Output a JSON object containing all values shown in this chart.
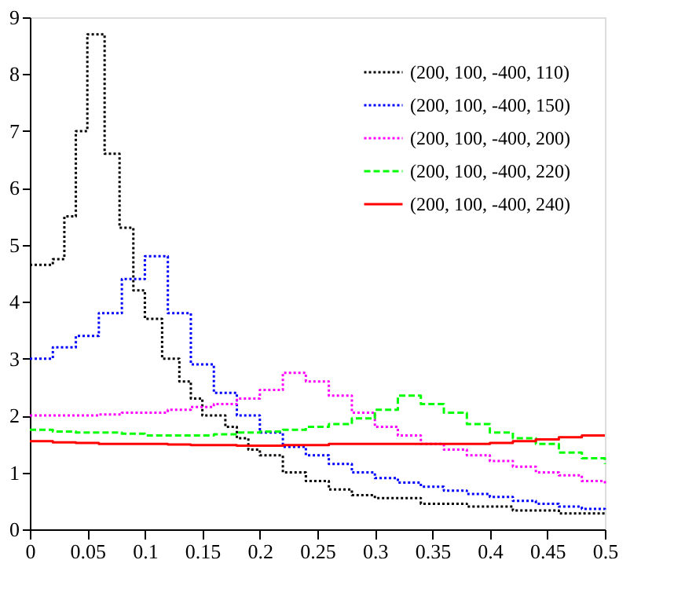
{
  "chart_data": {
    "type": "step",
    "xlim": [
      0,
      0.5
    ],
    "xticks": [
      0,
      0.05,
      0.1,
      0.15,
      0.2,
      0.25,
      0.3,
      0.35,
      0.4,
      0.45,
      0.5
    ],
    "ylim": [
      0,
      9
    ],
    "yticks": [
      0,
      1,
      2,
      3,
      4,
      5,
      6,
      7,
      8,
      9
    ],
    "grid": false,
    "legend": "top right",
    "series": [
      {
        "name": "(200, 100, -400, 110)",
        "color": "#000000",
        "line_style": "dotted",
        "x": [
          0,
          0.02,
          0.03,
          0.04,
          0.05,
          0.065,
          0.078,
          0.09,
          0.1,
          0.115,
          0.13,
          0.14,
          0.15,
          0.17,
          0.18,
          0.19,
          0.2,
          0.22,
          0.24,
          0.26,
          0.28,
          0.3,
          0.34,
          0.38,
          0.42,
          0.46,
          0.5
        ],
        "values": [
          4.65,
          4.75,
          5.5,
          7.0,
          8.7,
          6.6,
          5.3,
          4.2,
          3.7,
          3.0,
          2.6,
          2.3,
          2.0,
          1.8,
          1.6,
          1.4,
          1.3,
          1.0,
          0.85,
          0.7,
          0.6,
          0.55,
          0.45,
          0.4,
          0.33,
          0.28,
          0.25
        ]
      },
      {
        "name": "(200, 100, -400, 150)",
        "color": "#0000ff",
        "line_style": "dotted",
        "x": [
          0,
          0.02,
          0.04,
          0.06,
          0.08,
          0.1,
          0.12,
          0.14,
          0.16,
          0.18,
          0.2,
          0.22,
          0.24,
          0.26,
          0.28,
          0.3,
          0.32,
          0.34,
          0.36,
          0.38,
          0.4,
          0.42,
          0.44,
          0.46,
          0.48,
          0.5
        ],
        "values": [
          3.0,
          3.2,
          3.4,
          3.8,
          4.4,
          4.8,
          3.8,
          2.9,
          2.4,
          2.0,
          1.7,
          1.45,
          1.3,
          1.15,
          1.0,
          0.9,
          0.82,
          0.75,
          0.68,
          0.62,
          0.57,
          0.5,
          0.45,
          0.4,
          0.36,
          0.33
        ]
      },
      {
        "name": "(200, 100, -400, 200)",
        "color": "#ff00ff",
        "line_style": "dotted",
        "x": [
          0,
          0.02,
          0.04,
          0.06,
          0.08,
          0.1,
          0.12,
          0.14,
          0.16,
          0.18,
          0.2,
          0.22,
          0.24,
          0.26,
          0.28,
          0.3,
          0.32,
          0.34,
          0.36,
          0.38,
          0.4,
          0.42,
          0.44,
          0.46,
          0.48,
          0.5
        ],
        "values": [
          2.0,
          2.0,
          2.0,
          2.02,
          2.05,
          2.05,
          2.1,
          2.15,
          2.2,
          2.3,
          2.45,
          2.75,
          2.6,
          2.35,
          2.05,
          1.8,
          1.65,
          1.5,
          1.4,
          1.3,
          1.2,
          1.1,
          1.0,
          0.95,
          0.85,
          0.8
        ]
      },
      {
        "name": "(200, 100, -400, 220)",
        "color": "#00ff00",
        "line_style": "dashed",
        "x": [
          0,
          0.02,
          0.04,
          0.06,
          0.08,
          0.1,
          0.12,
          0.14,
          0.16,
          0.18,
          0.2,
          0.22,
          0.24,
          0.26,
          0.28,
          0.3,
          0.32,
          0.34,
          0.36,
          0.38,
          0.4,
          0.42,
          0.44,
          0.46,
          0.48,
          0.5
        ],
        "values": [
          1.75,
          1.72,
          1.7,
          1.7,
          1.68,
          1.65,
          1.65,
          1.65,
          1.67,
          1.7,
          1.72,
          1.75,
          1.8,
          1.85,
          1.95,
          2.1,
          2.35,
          2.2,
          2.05,
          1.85,
          1.7,
          1.6,
          1.5,
          1.35,
          1.25,
          1.15
        ]
      },
      {
        "name": "(200, 100, -400, 240)",
        "color": "#ff0000",
        "line_style": "solid",
        "x": [
          0,
          0.02,
          0.04,
          0.06,
          0.08,
          0.1,
          0.12,
          0.14,
          0.16,
          0.18,
          0.2,
          0.22,
          0.24,
          0.26,
          0.28,
          0.3,
          0.32,
          0.34,
          0.36,
          0.38,
          0.4,
          0.42,
          0.44,
          0.46,
          0.48,
          0.5
        ],
        "values": [
          1.55,
          1.53,
          1.52,
          1.5,
          1.5,
          1.5,
          1.49,
          1.48,
          1.48,
          1.47,
          1.47,
          1.48,
          1.48,
          1.5,
          1.5,
          1.5,
          1.5,
          1.5,
          1.5,
          1.5,
          1.52,
          1.55,
          1.58,
          1.62,
          1.65,
          1.65
        ]
      }
    ]
  }
}
